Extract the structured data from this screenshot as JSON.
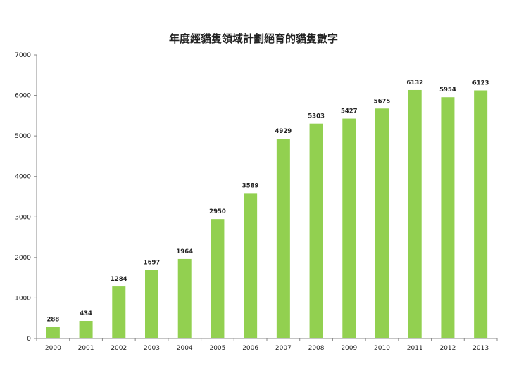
{
  "chart_data": {
    "type": "bar",
    "title": "年度經貓隻領域計劃絕育的貓隻數字",
    "xlabel": "",
    "ylabel": "",
    "ylim": [
      0,
      7000
    ],
    "yticks": [
      0,
      1000,
      2000,
      3000,
      4000,
      5000,
      6000,
      7000
    ],
    "grid": false,
    "legend": "none",
    "categories": [
      "2000",
      "2001",
      "2002",
      "2003",
      "2004",
      "2005",
      "2006",
      "2007",
      "2008",
      "2009",
      "2010",
      "2011",
      "2012",
      "2013"
    ],
    "values": [
      288,
      434,
      1284,
      1697,
      1964,
      2950,
      3589,
      4929,
      5303,
      5427,
      5675,
      6132,
      5954,
      6123
    ],
    "bar_color": "#92d050"
  }
}
